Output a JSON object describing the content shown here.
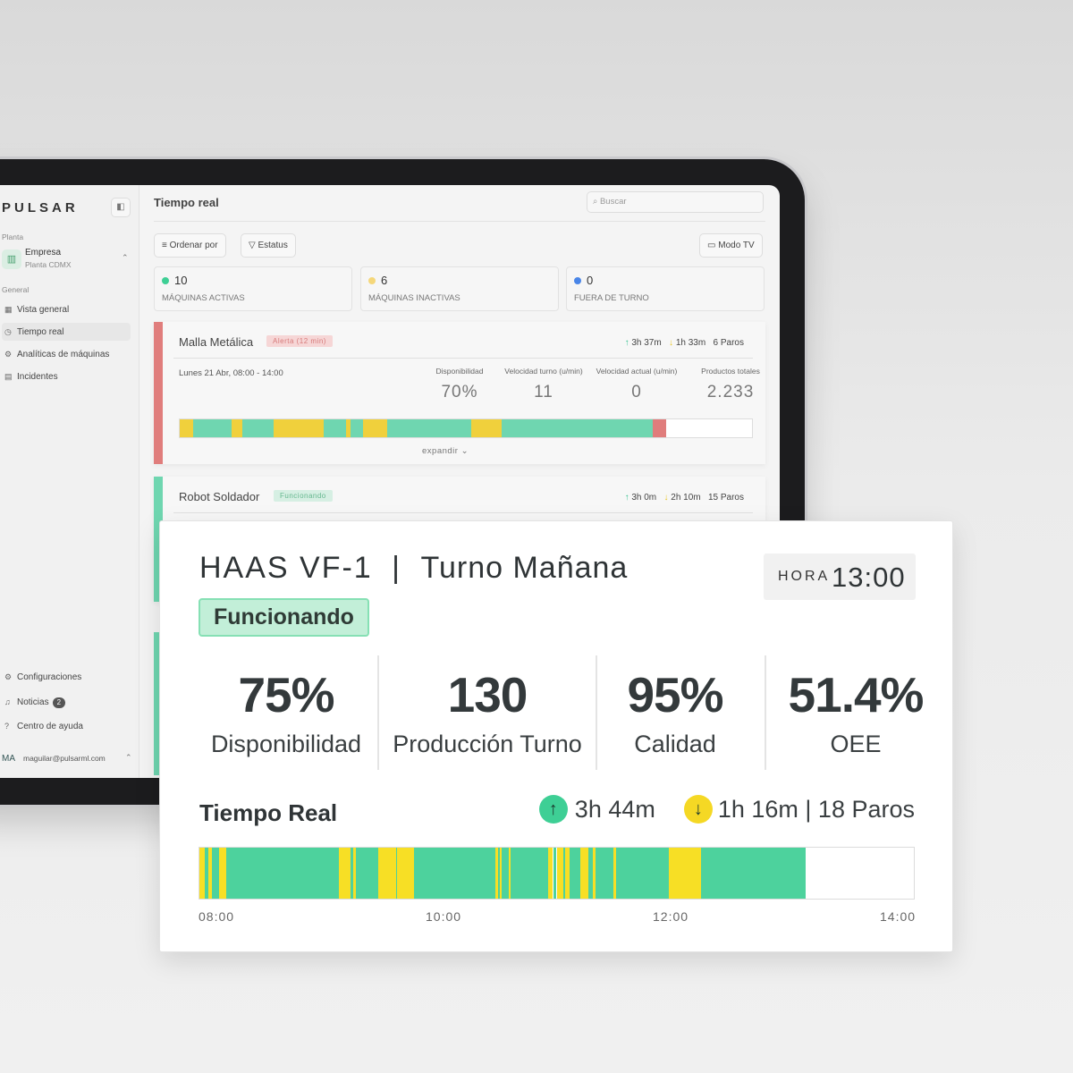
{
  "sidebar": {
    "logo": "PULSAR",
    "collapse_icon": "sidebar-collapse-icon",
    "plant_label": "Planta",
    "company_name": "Empresa",
    "company_sub": "Planta CDMX",
    "general_label": "General",
    "nav": [
      {
        "label": "Vista general",
        "icon": "grid-icon"
      },
      {
        "label": "Tiempo real",
        "icon": "clock-icon"
      },
      {
        "label": "Analíticas de máquinas",
        "icon": "gear-icon"
      },
      {
        "label": "Incidentes",
        "icon": "document-icon"
      }
    ],
    "bottom_nav": [
      {
        "label": "Configuraciones",
        "icon": "gear-icon"
      },
      {
        "label": "Noticias",
        "icon": "bell-icon",
        "badge": "2"
      },
      {
        "label": "Centro de ayuda",
        "icon": "help-icon"
      }
    ],
    "user_initials": "MA",
    "user_email": "maguilar@pulsarml.com"
  },
  "header": {
    "title": "Tiempo real",
    "search_placeholder": "Buscar"
  },
  "toolbar": {
    "sort_label": "Ordenar por",
    "status_label": "Estatus",
    "tv_label": "Modo TV"
  },
  "stats": [
    {
      "value": "10",
      "label": "MÁQUINAS ACTIVAS",
      "color": "#3ecf95"
    },
    {
      "value": "6",
      "label": "MÁQUINAS INACTIVAS",
      "color": "#f5d77a"
    },
    {
      "value": "0",
      "label": "FUERA DE TURNO",
      "color": "#4a86e8"
    }
  ],
  "machine1": {
    "name": "Malla Metálica",
    "tag": "Alerta (12 min)",
    "up_time": "3h 37m",
    "down_time": "1h 33m",
    "stops": "6 Paros",
    "date": "Lunes 21 Abr, 08:00 - 14:00",
    "metrics": [
      {
        "label": "Disponibilidad",
        "value": "70%"
      },
      {
        "label": "Velocidad turno (u/min)",
        "value": "11"
      },
      {
        "label": "Velocidad actual (u/min)",
        "value": "0"
      },
      {
        "label": "Productos totales",
        "value": "2.233"
      }
    ],
    "expand_label": "expandir"
  },
  "machine2": {
    "name": "Robot Soldador",
    "tag": "Funcionando",
    "up_time": "3h 0m",
    "down_time": "2h 10m",
    "stops": "15 Paros"
  },
  "overlay": {
    "machine": "HAAS VF-1",
    "separator": "|",
    "shift": "Turno Mañana",
    "status": "Funcionando",
    "clock_label": "HORA",
    "clock_time": "13:00",
    "kpis": [
      {
        "value": "75%",
        "label": "Disponibilidad"
      },
      {
        "value": "130",
        "label": "Producción Turno"
      },
      {
        "value": "95%",
        "label": "Calidad"
      },
      {
        "value": "51.4%",
        "label": "OEE"
      }
    ],
    "realtime_title": "Tiempo Real",
    "up_time": "3h 44m",
    "down_summary": "1h 16m | 18 Paros",
    "ticks": [
      "08:00",
      "10:00",
      "12:00",
      "14:00"
    ]
  },
  "colors": {
    "green": "#4dd29d",
    "yellow": "#f7df25",
    "red": "#e07d7c",
    "green_small": "#6fd6b0",
    "yellow_small": "#f0d03c"
  }
}
